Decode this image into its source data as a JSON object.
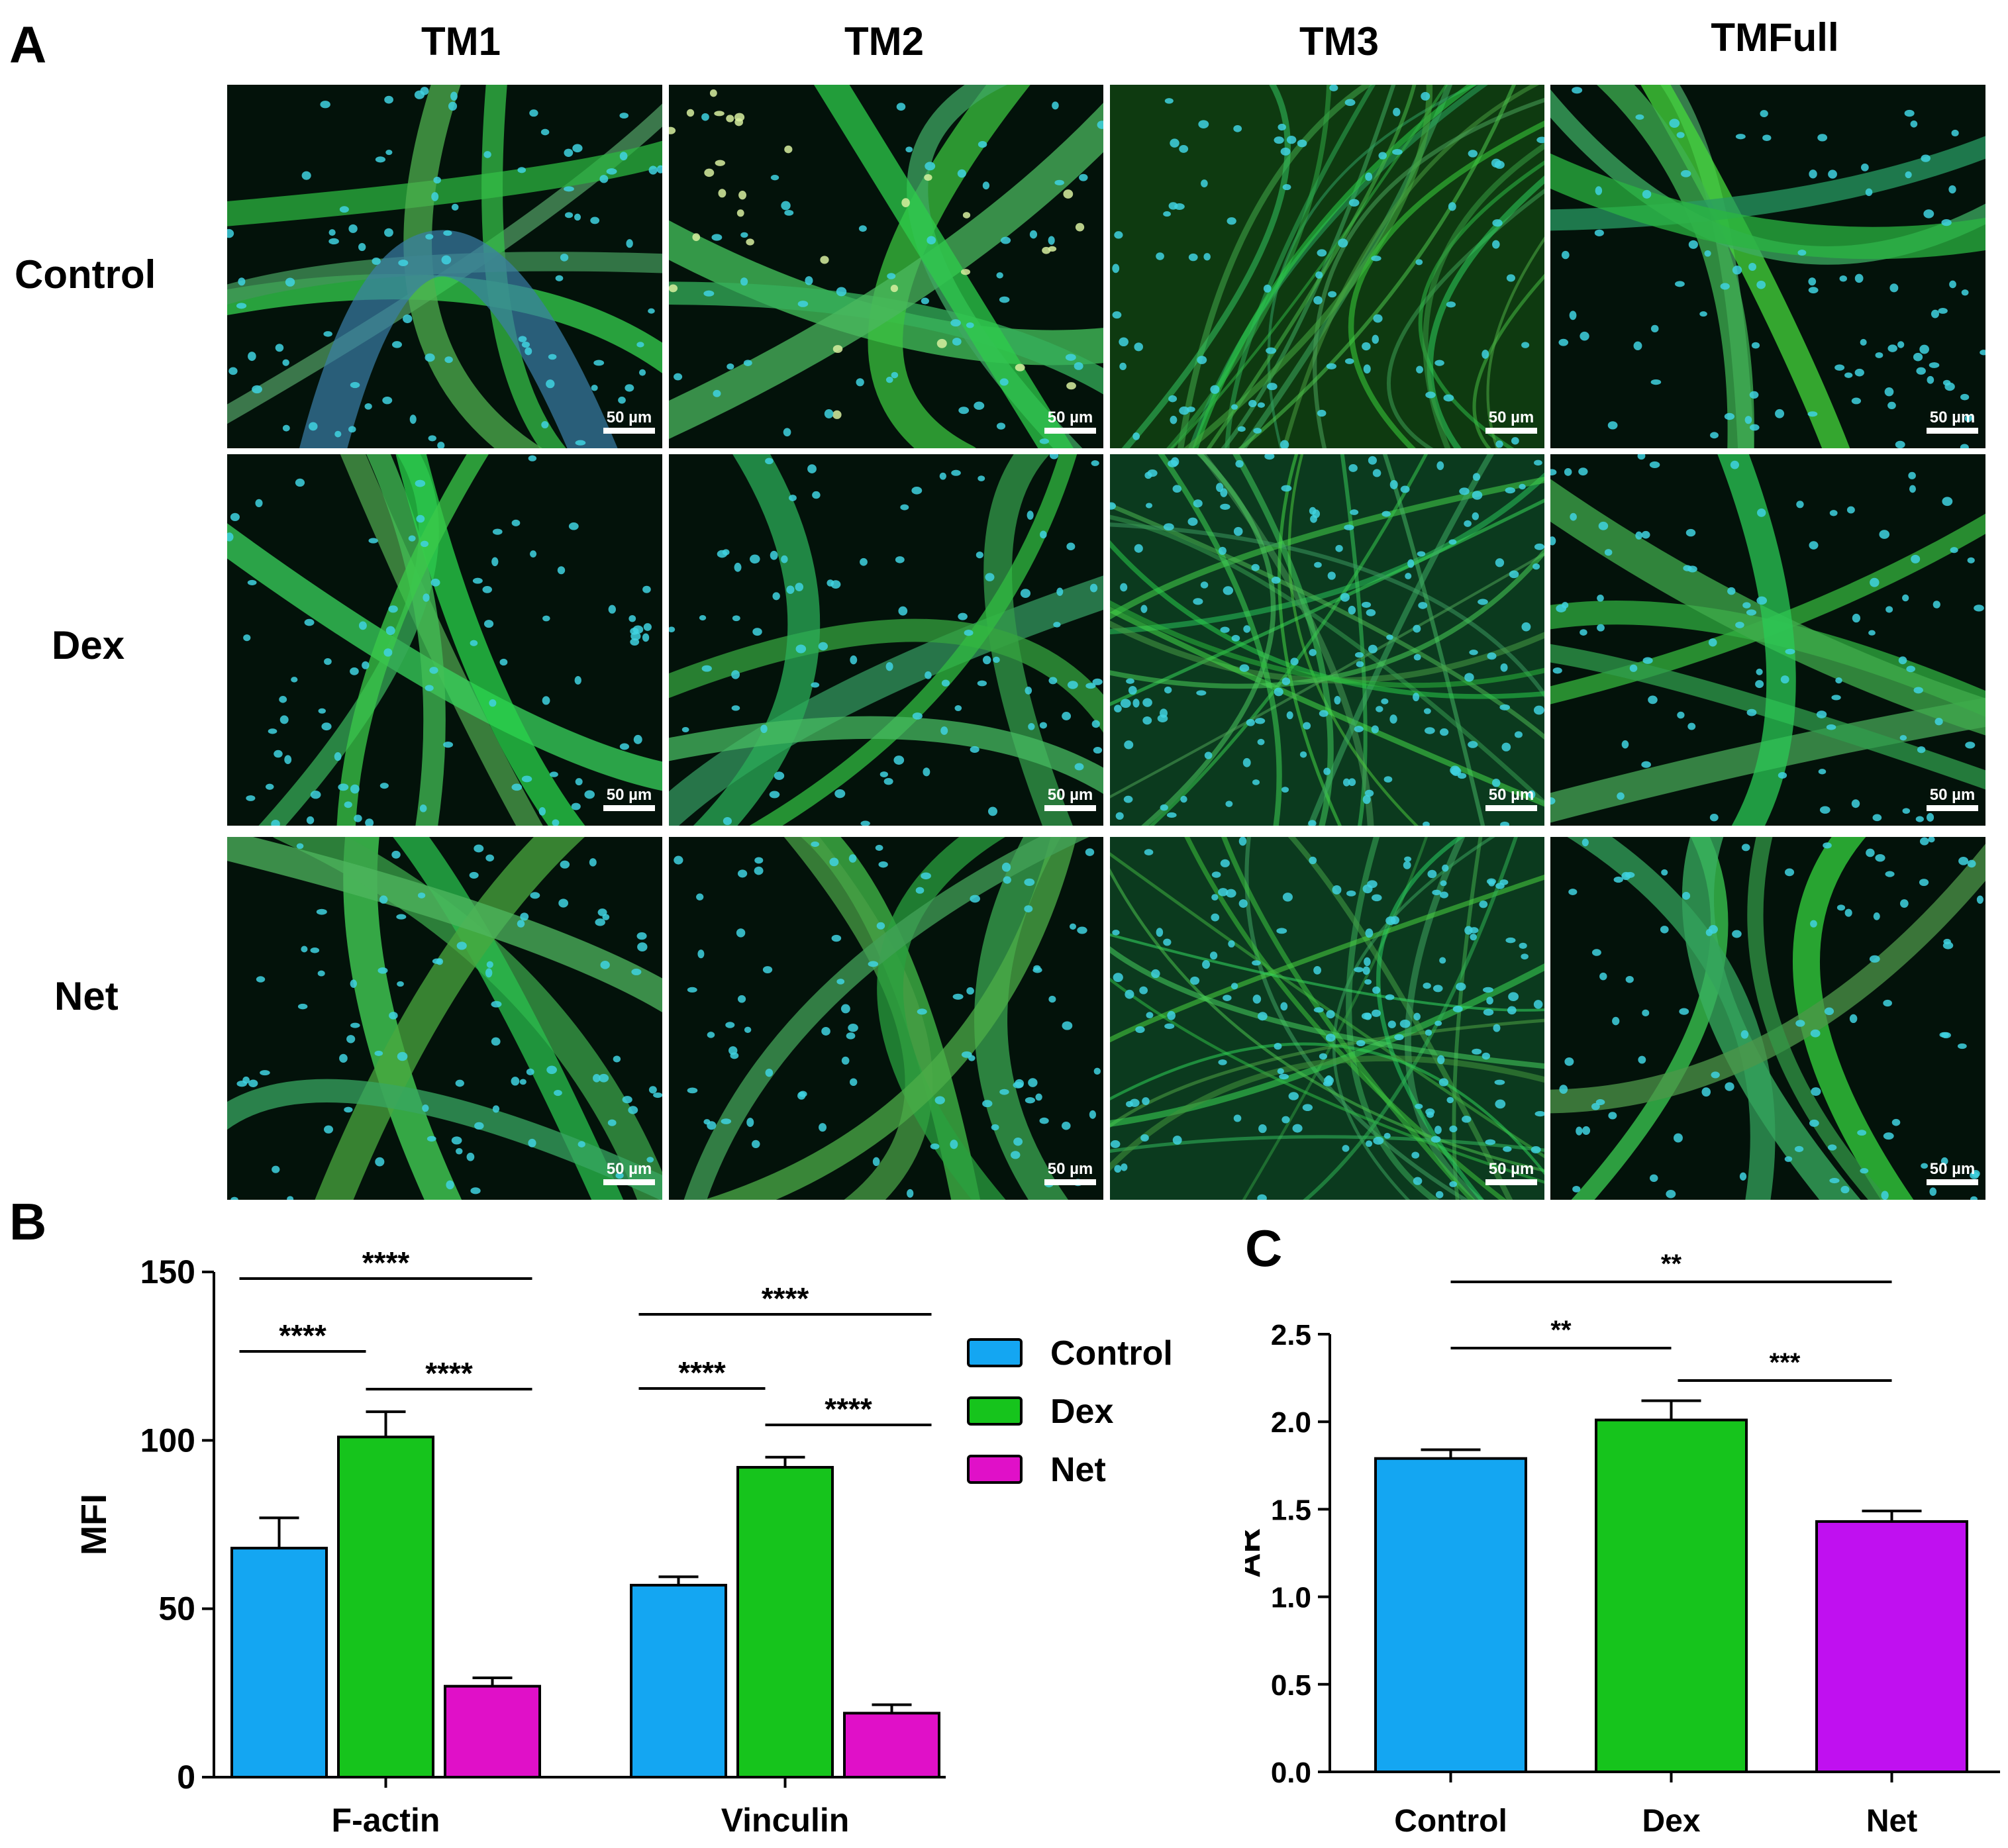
{
  "panels": {
    "a_label": "A",
    "b_label": "B",
    "c_label": "C"
  },
  "micrographs": {
    "columns": [
      "TM1",
      "TM2",
      "TM3",
      "TMFull"
    ],
    "rows": [
      "Control",
      "Dex",
      "Net"
    ],
    "scale_label": "50 µm"
  },
  "legend": {
    "entries": [
      {
        "name": "Control",
        "color": "#14a6f2"
      },
      {
        "name": "Dex",
        "color": "#16c41c"
      },
      {
        "name": "Net",
        "color": "#e010c8"
      }
    ]
  },
  "chart_data": [
    {
      "type": "bar",
      "title": "",
      "xlabel": "",
      "ylabel": "MFI",
      "categories": [
        "F-actin",
        "Vinculin"
      ],
      "ylim": [
        0,
        150
      ],
      "yticks": [
        0,
        50,
        100,
        150
      ],
      "series": [
        {
          "name": "Control",
          "color": "#14a6f2",
          "values": [
            68,
            57
          ],
          "errors": [
            9,
            2.5
          ]
        },
        {
          "name": "Dex",
          "color": "#16c41c",
          "values": [
            101,
            92
          ],
          "errors": [
            7.5,
            3
          ]
        },
        {
          "name": "Net",
          "color": "#e010c8",
          "values": [
            27,
            19
          ],
          "errors": [
            2.5,
            2.5
          ]
        }
      ],
      "significance": [
        {
          "group": "F-actin",
          "from": "Control",
          "to": "Net",
          "label": "****"
        },
        {
          "group": "F-actin",
          "from": "Control",
          "to": "Dex",
          "label": "****"
        },
        {
          "group": "F-actin",
          "from": "Dex",
          "to": "Net",
          "label": "****"
        },
        {
          "group": "Vinculin",
          "from": "Control",
          "to": "Net",
          "label": "****"
        },
        {
          "group": "Vinculin",
          "from": "Control",
          "to": "Dex",
          "label": "****"
        },
        {
          "group": "Vinculin",
          "from": "Dex",
          "to": "Net",
          "label": "****"
        }
      ],
      "legend_position": "right"
    },
    {
      "type": "bar",
      "title": "",
      "xlabel": "",
      "ylabel": "AR",
      "categories": [
        "Control",
        "Dex",
        "Net"
      ],
      "ylim": [
        0,
        2.5
      ],
      "yticks": [
        "0.0",
        "0.5",
        "1.0",
        "1.5",
        "2.0",
        "2.5"
      ],
      "values": [
        1.79,
        2.01,
        1.43
      ],
      "errors": [
        0.05,
        0.11,
        0.06
      ],
      "colors": [
        "#14a6f2",
        "#16c41c",
        "#c010f0"
      ],
      "significance": [
        {
          "from": "Control",
          "to": "Net",
          "label": "**"
        },
        {
          "from": "Control",
          "to": "Dex",
          "label": "**"
        },
        {
          "from": "Dex",
          "to": "Net",
          "label": "***"
        }
      ]
    }
  ]
}
